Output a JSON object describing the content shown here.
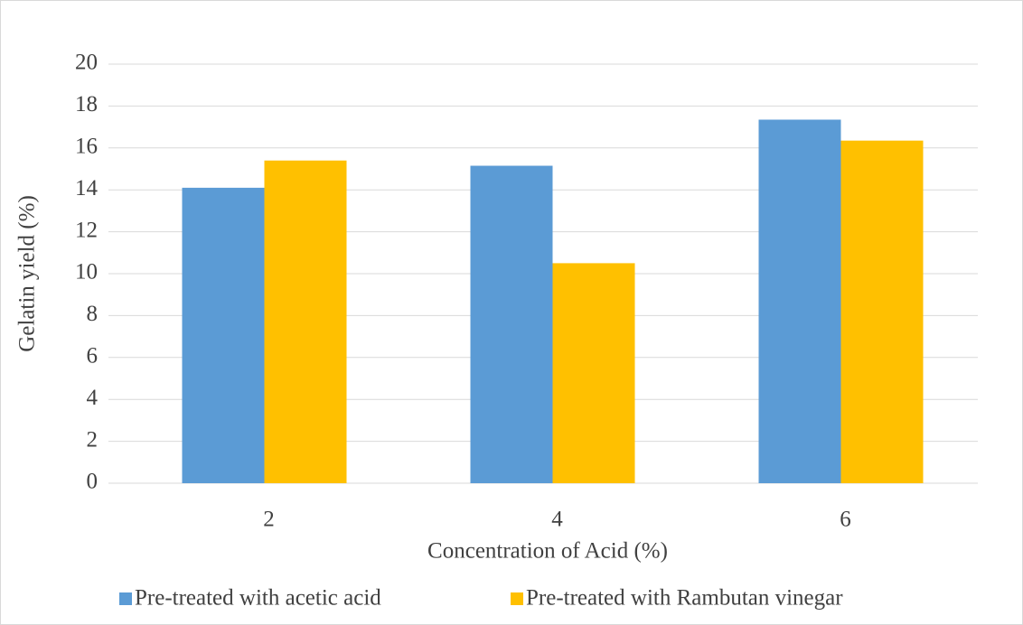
{
  "chart_data": {
    "type": "bar",
    "categories": [
      "2",
      "4",
      "6"
    ],
    "series": [
      {
        "name": "Pre-treated with acetic acid",
        "color": "#5b9bd5",
        "values": [
          14.1,
          15.15,
          17.35
        ]
      },
      {
        "name": "Pre-treated with Rambutan vinegar",
        "color": "#ffc000",
        "values": [
          15.4,
          10.5,
          16.35
        ]
      }
    ],
    "x_label": "Concentration of Acid (%)",
    "y_label": "Gelatin yield (%)",
    "ylim": [
      0,
      20
    ],
    "yticks": [
      0,
      2,
      4,
      6,
      8,
      10,
      12,
      14,
      16,
      18,
      20
    ],
    "grid": true,
    "legend": "bottom"
  }
}
